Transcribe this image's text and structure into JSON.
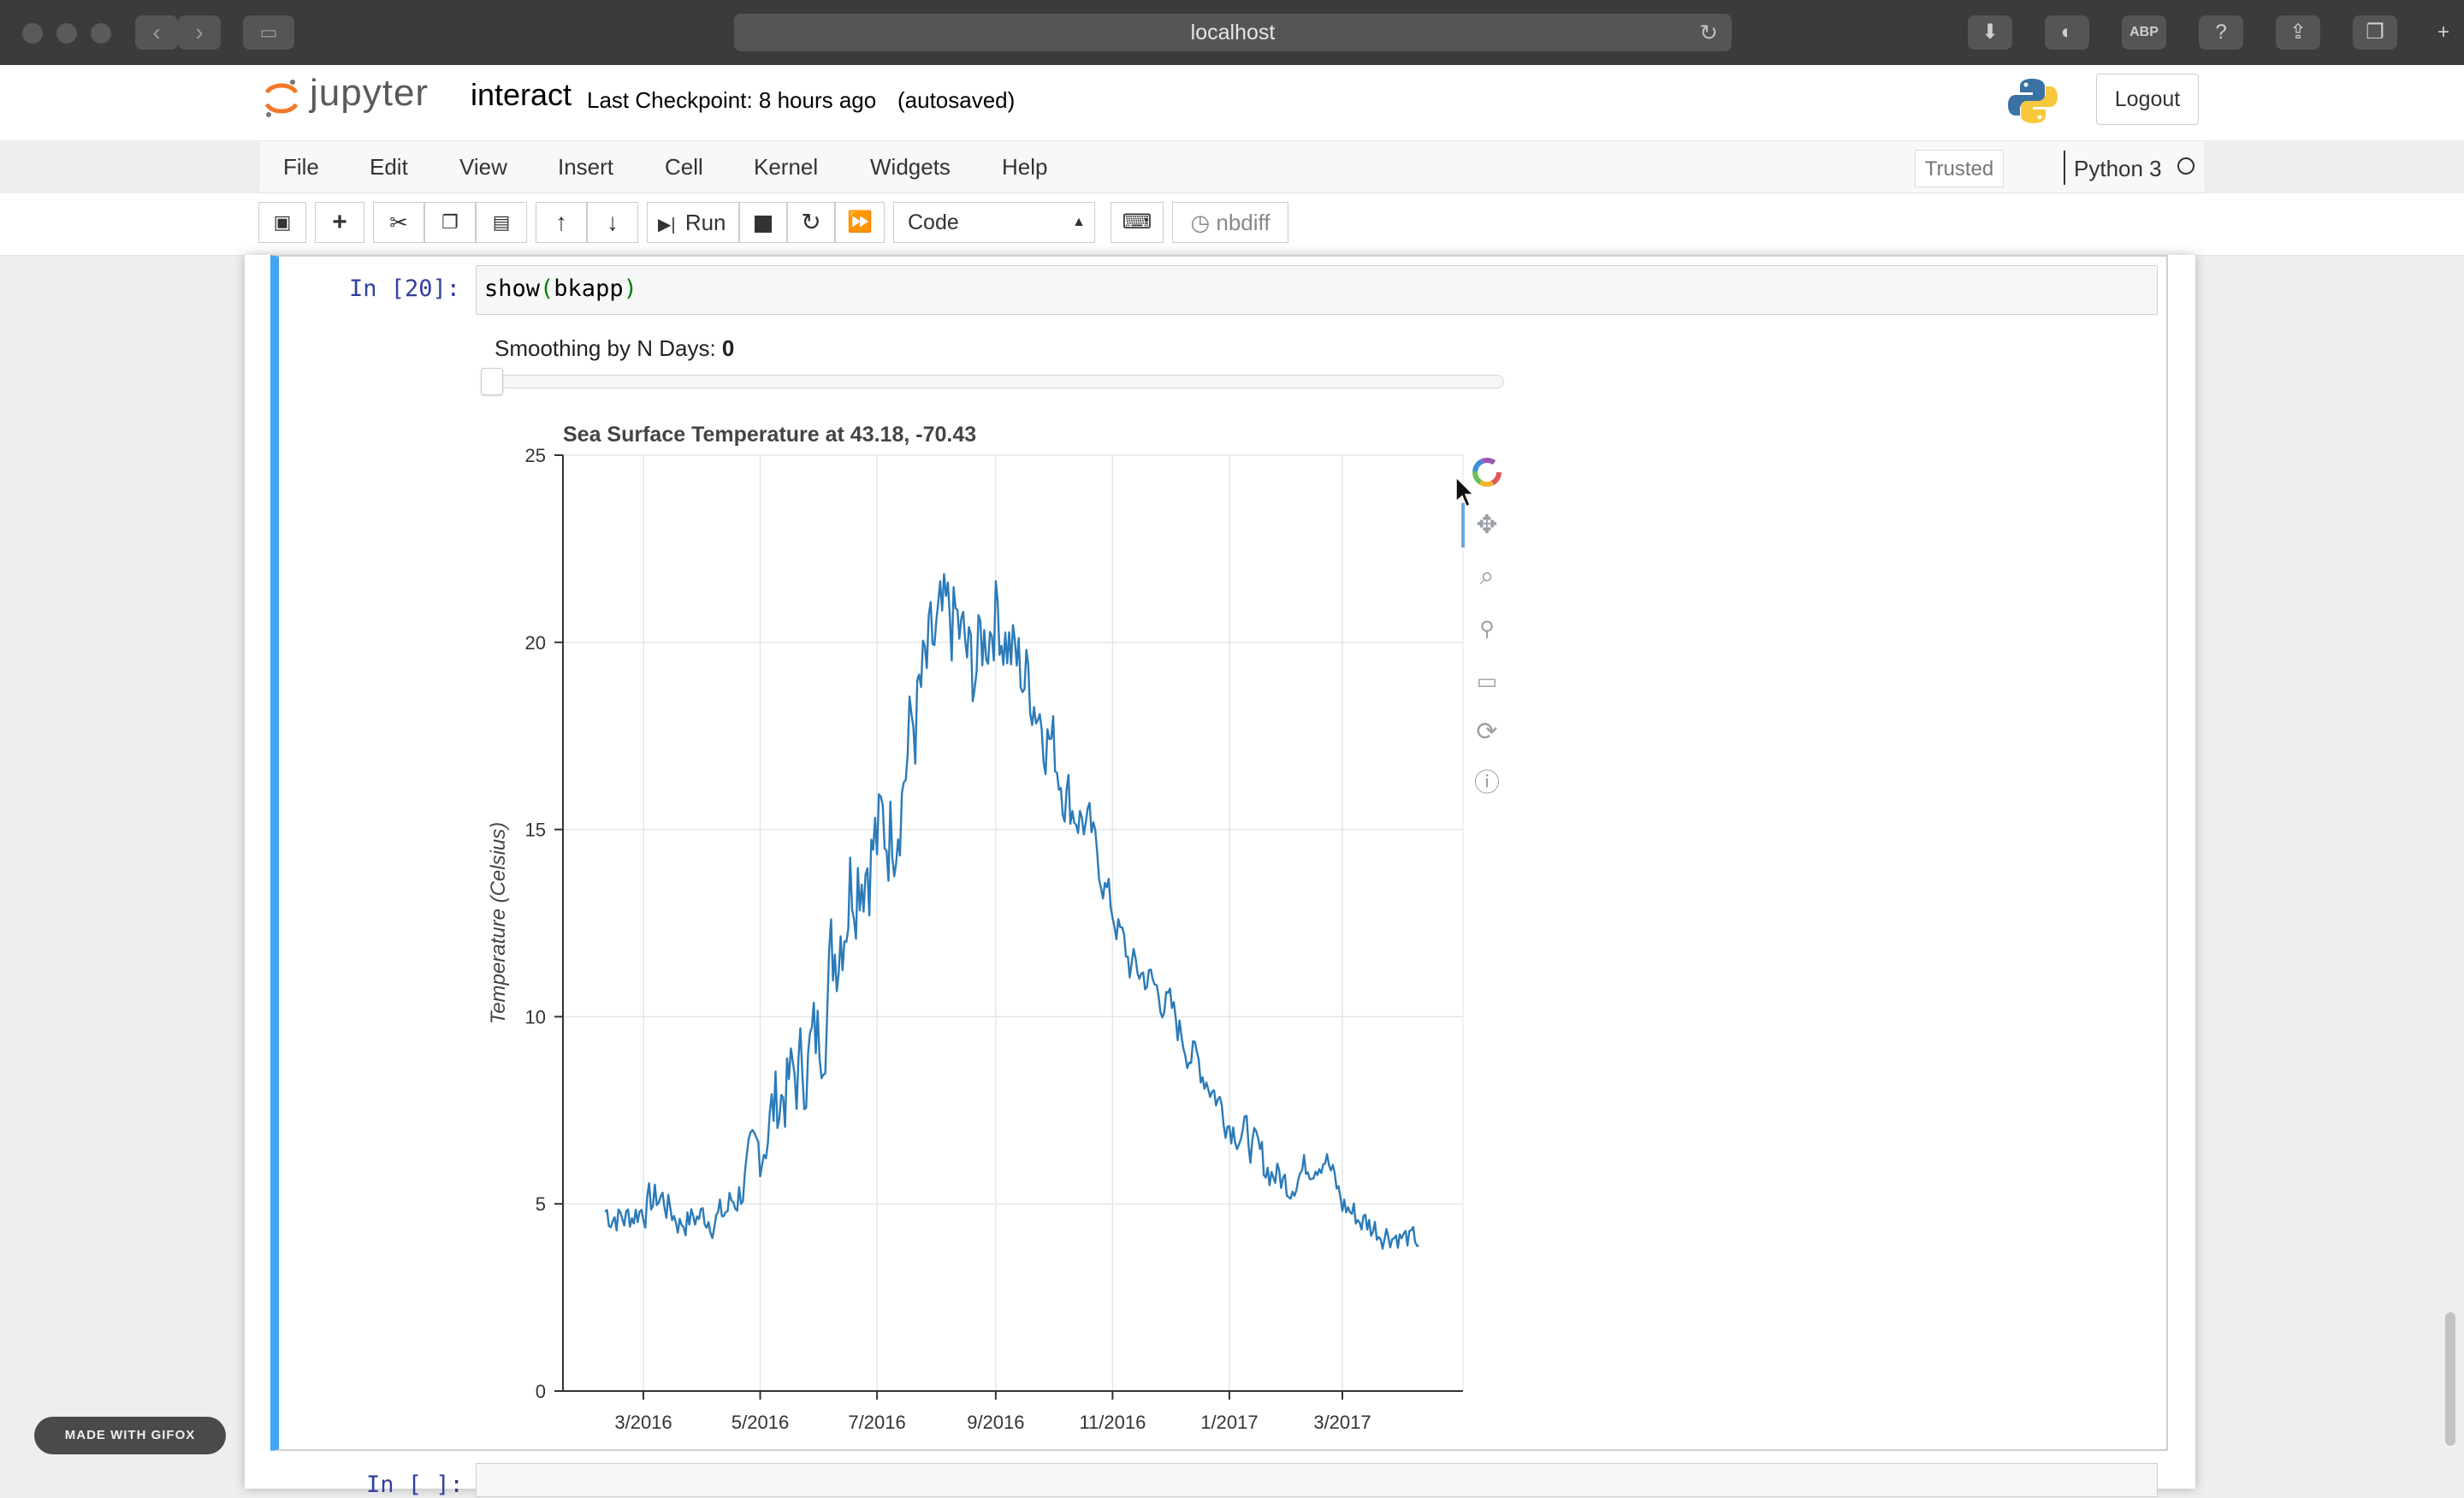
{
  "browser": {
    "address": "localhost"
  },
  "header": {
    "logo_text": "jupyter",
    "notebook_name": "interact",
    "checkpoint": "Last Checkpoint: 8 hours ago",
    "autosaved": "(autosaved)",
    "logout_label": "Logout"
  },
  "menubar": {
    "items": [
      "File",
      "Edit",
      "View",
      "Insert",
      "Cell",
      "Kernel",
      "Widgets",
      "Help"
    ],
    "trusted": "Trusted",
    "kernel": "Python 3"
  },
  "toolbar": {
    "run_label": "Run",
    "cell_type": "Code",
    "nbdiff_label": "nbdiff",
    "icons": [
      "save-icon",
      "plus-icon",
      "cut-icon",
      "copy-icon",
      "paste-icon",
      "arrow-up-icon",
      "arrow-down-icon",
      "run-icon",
      "stop-icon",
      "restart-icon",
      "fast-forward-icon",
      "keyboard-icon",
      "clock-icon"
    ]
  },
  "cell": {
    "prompt": "In [20]:",
    "code_fn": "show",
    "code_open": "(",
    "code_arg": "bkapp",
    "code_close": ")"
  },
  "slider": {
    "label": "Smoothing by N Days:",
    "value": "0",
    "fraction": 0
  },
  "next_cell": {
    "prompt": "In [ ]:"
  },
  "bokeh_tools": [
    "bokeh-logo-icon",
    "pan-icon",
    "box-zoom-icon",
    "wheel-zoom-icon",
    "save-icon",
    "reset-icon",
    "help-icon"
  ],
  "colors": {
    "line": "#2b7bb9",
    "cell_selected": "#42a5f5",
    "prompt": "#303f9f"
  },
  "chart_data": {
    "type": "line",
    "title": "Sea Surface Temperature at 43.18, -70.43",
    "xlabel": "",
    "ylabel": "Temperature (Celsius)",
    "ylim": [
      0,
      25
    ],
    "yticks": [
      0,
      5,
      10,
      15,
      20,
      25
    ],
    "xticks": [
      "3/2016",
      "5/2016",
      "7/2016",
      "9/2016",
      "11/2016",
      "1/2017",
      "3/2017"
    ],
    "x_range": [
      "2016-01-19",
      "2017-05-03"
    ],
    "grid": true,
    "series": [
      {
        "x": [
          "2016-02-10",
          "2016-02-20",
          "2016-03-01",
          "2016-03-10",
          "2016-03-20",
          "2016-04-01",
          "2016-04-10",
          "2016-04-20",
          "2016-05-01",
          "2016-05-10",
          "2016-05-20",
          "2016-06-01",
          "2016-06-10",
          "2016-06-20",
          "2016-07-01",
          "2016-07-10",
          "2016-07-20",
          "2016-08-01",
          "2016-08-10",
          "2016-08-20",
          "2016-09-01",
          "2016-09-10",
          "2016-09-20",
          "2016-10-01",
          "2016-10-10",
          "2016-10-20",
          "2016-11-01",
          "2016-11-10",
          "2016-11-20",
          "2016-12-01",
          "2016-12-10",
          "2016-12-20",
          "2017-01-01",
          "2017-01-10",
          "2017-01-20",
          "2017-02-01",
          "2017-02-10",
          "2017-02-20",
          "2017-03-01",
          "2017-03-10",
          "2017-03-20",
          "2017-04-01",
          "2017-04-10"
        ],
        "y": [
          4.8,
          4.6,
          4.9,
          5.2,
          4.5,
          4.7,
          4.6,
          5.3,
          6.5,
          7.8,
          8.4,
          9.5,
          12.2,
          14.3,
          14.6,
          15.3,
          17.8,
          20.0,
          20.6,
          19.2,
          21.0,
          19.6,
          18.8,
          17.2,
          15.7,
          15.0,
          12.8,
          11.4,
          11.0,
          10.2,
          9.2,
          8.4,
          7.2,
          6.8,
          6.0,
          5.5,
          6.0,
          6.3,
          5.0,
          4.6,
          4.3,
          4.1,
          4.0
        ],
        "noise": [
          0.5,
          0.4,
          0.5,
          0.5,
          0.4,
          0.4,
          0.5,
          0.6,
          0.9,
          1.1,
          1.2,
          1.3,
          1.6,
          1.7,
          1.6,
          1.4,
          1.6,
          1.4,
          1.3,
          1.2,
          1.2,
          1.2,
          1.1,
          1.0,
          0.8,
          0.6,
          0.5,
          0.5,
          0.5,
          0.5,
          0.5,
          0.5,
          0.5,
          0.5,
          0.5,
          0.4,
          0.4,
          0.4,
          0.4,
          0.4,
          0.4,
          0.3,
          0.3
        ]
      }
    ]
  }
}
